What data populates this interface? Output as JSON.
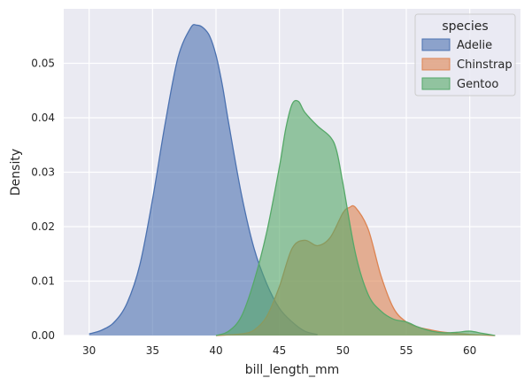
{
  "chart_data": {
    "type": "area",
    "title": "",
    "xlabel": "bill_length_mm",
    "ylabel": "Density",
    "xlim": [
      28.0,
      64.0
    ],
    "ylim": [
      0.0,
      0.06
    ],
    "xticks": [
      30,
      35,
      40,
      45,
      50,
      55,
      60
    ],
    "yticks": [
      0.0,
      0.01,
      0.02,
      0.03,
      0.04,
      0.05
    ],
    "ytick_labels": [
      "0.00",
      "0.01",
      "0.02",
      "0.03",
      "0.04",
      "0.05"
    ],
    "grid": true,
    "legend": {
      "title": "species",
      "position": "top-right"
    },
    "series": [
      {
        "name": "Adelie",
        "color": "#4c72b0",
        "x": [
          30.0,
          31.0,
          32.0,
          33.0,
          34.0,
          35.0,
          36.0,
          37.0,
          38.0,
          38.5,
          39.0,
          39.5,
          40.0,
          40.5,
          41.0,
          42.0,
          43.0,
          44.0,
          45.0,
          46.0,
          47.0,
          48.0
        ],
        "y": [
          0.0003,
          0.001,
          0.0025,
          0.006,
          0.013,
          0.025,
          0.039,
          0.051,
          0.0565,
          0.057,
          0.0565,
          0.055,
          0.0515,
          0.046,
          0.039,
          0.026,
          0.016,
          0.0095,
          0.005,
          0.0025,
          0.0008,
          0.0002
        ]
      },
      {
        "name": "Chinstrap",
        "color": "#dd8452",
        "x": [
          40.0,
          42.0,
          43.0,
          44.0,
          45.0,
          46.0,
          47.0,
          48.0,
          49.0,
          50.0,
          50.5,
          51.0,
          52.0,
          53.0,
          54.0,
          55.0,
          56.0,
          57.0,
          58.0,
          60.0,
          62.0
        ],
        "y": [
          0.0,
          0.0003,
          0.001,
          0.0035,
          0.009,
          0.016,
          0.0175,
          0.0165,
          0.018,
          0.0225,
          0.0235,
          0.0235,
          0.0195,
          0.011,
          0.005,
          0.0025,
          0.0015,
          0.001,
          0.0006,
          0.0002,
          0.0
        ]
      },
      {
        "name": "Gentoo",
        "color": "#55a868",
        "x": [
          40.0,
          41.0,
          42.0,
          43.0,
          44.0,
          45.0,
          45.5,
          46.0,
          46.5,
          47.0,
          48.0,
          49.0,
          49.5,
          50.0,
          51.0,
          52.0,
          53.0,
          54.0,
          55.0,
          56.0,
          57.0,
          58.0,
          59.0,
          60.0,
          61.0,
          62.0
        ],
        "y": [
          0.0,
          0.0008,
          0.0035,
          0.01,
          0.019,
          0.031,
          0.038,
          0.0425,
          0.043,
          0.041,
          0.0385,
          0.0365,
          0.034,
          0.028,
          0.015,
          0.0075,
          0.0045,
          0.003,
          0.0025,
          0.0015,
          0.0008,
          0.0005,
          0.0006,
          0.0008,
          0.0004,
          0.0
        ]
      }
    ]
  }
}
